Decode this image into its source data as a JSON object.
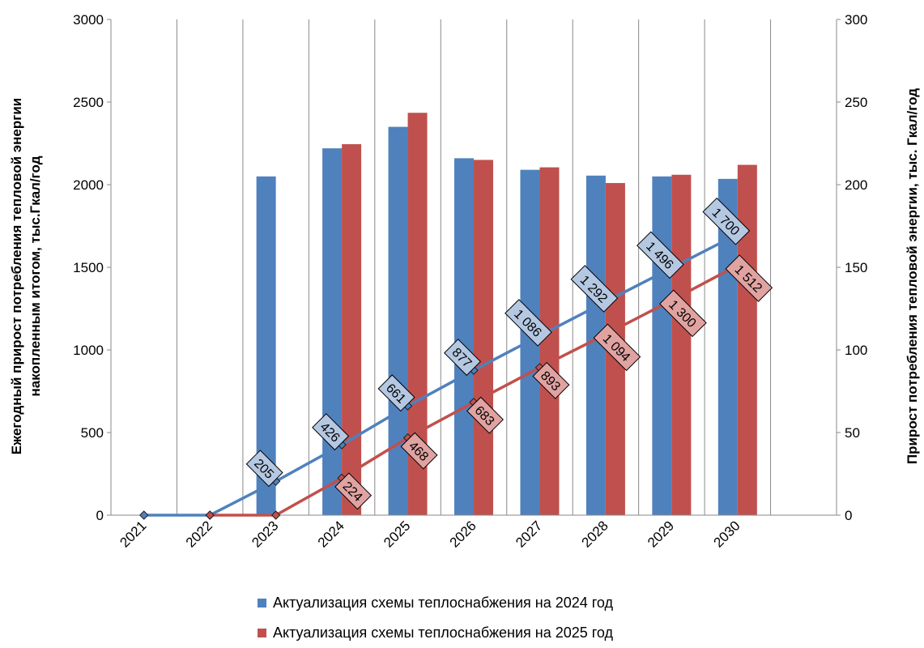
{
  "chart_data": {
    "type": "bar",
    "categories": [
      "2021",
      "2022",
      "2023",
      "2024",
      "2025",
      "2026",
      "2027",
      "2028",
      "2029",
      "2030"
    ],
    "series": [
      {
        "name": "Актуализация схемы теплоснабжения на 2024 год",
        "color": "#4f81bd",
        "bar_axis": "left",
        "bar_values": [
          null,
          null,
          2050,
          2220,
          2350,
          2160,
          2090,
          2055,
          2050,
          2035
        ],
        "line_axis": "right",
        "line_values": [
          0,
          0,
          20.5,
          42.6,
          66.1,
          87.7,
          108.6,
          129.2,
          149.6,
          170.0
        ],
        "line_labels": [
          "",
          "",
          "205",
          "426",
          "661",
          "877",
          "1 086",
          "1 292",
          "1 496",
          "1 700"
        ]
      },
      {
        "name": "Актуализация схемы теплоснабжения на 2025 год",
        "color": "#c0504d",
        "bar_axis": "left",
        "bar_values": [
          null,
          null,
          null,
          2245,
          2435,
          2150,
          2105,
          2010,
          2060,
          2120
        ],
        "line_axis": "right",
        "line_values": [
          null,
          0,
          0,
          22.4,
          46.8,
          68.3,
          89.3,
          109.4,
          130.0,
          151.2
        ],
        "line_labels": [
          "",
          "",
          "",
          "224",
          "468",
          "683",
          "893",
          "1 094",
          "1 300",
          "1 512"
        ]
      }
    ],
    "y_left": {
      "label": "Ежегодный прирост потребления тепловой энергии накопленным итогом, тыс.Гкал/год",
      "label_lines": [
        "Ежегодный прирост потребления тепловой энергии",
        "накопленным итогом, тыс.Гкал/год"
      ],
      "ylim": [
        0,
        3000
      ],
      "ticks": [
        "0",
        "500",
        "1000",
        "1500",
        "2000",
        "2500",
        "3000"
      ]
    },
    "y_right": {
      "label": "Прирост потребления тепловой энергии, тыс. Гкал/год",
      "ylim": [
        0,
        300
      ],
      "ticks": [
        "0",
        "50",
        "100",
        "150",
        "200",
        "250",
        "300"
      ]
    },
    "x_slots": 11,
    "grid": "vertical",
    "legend_position": "bottom"
  }
}
